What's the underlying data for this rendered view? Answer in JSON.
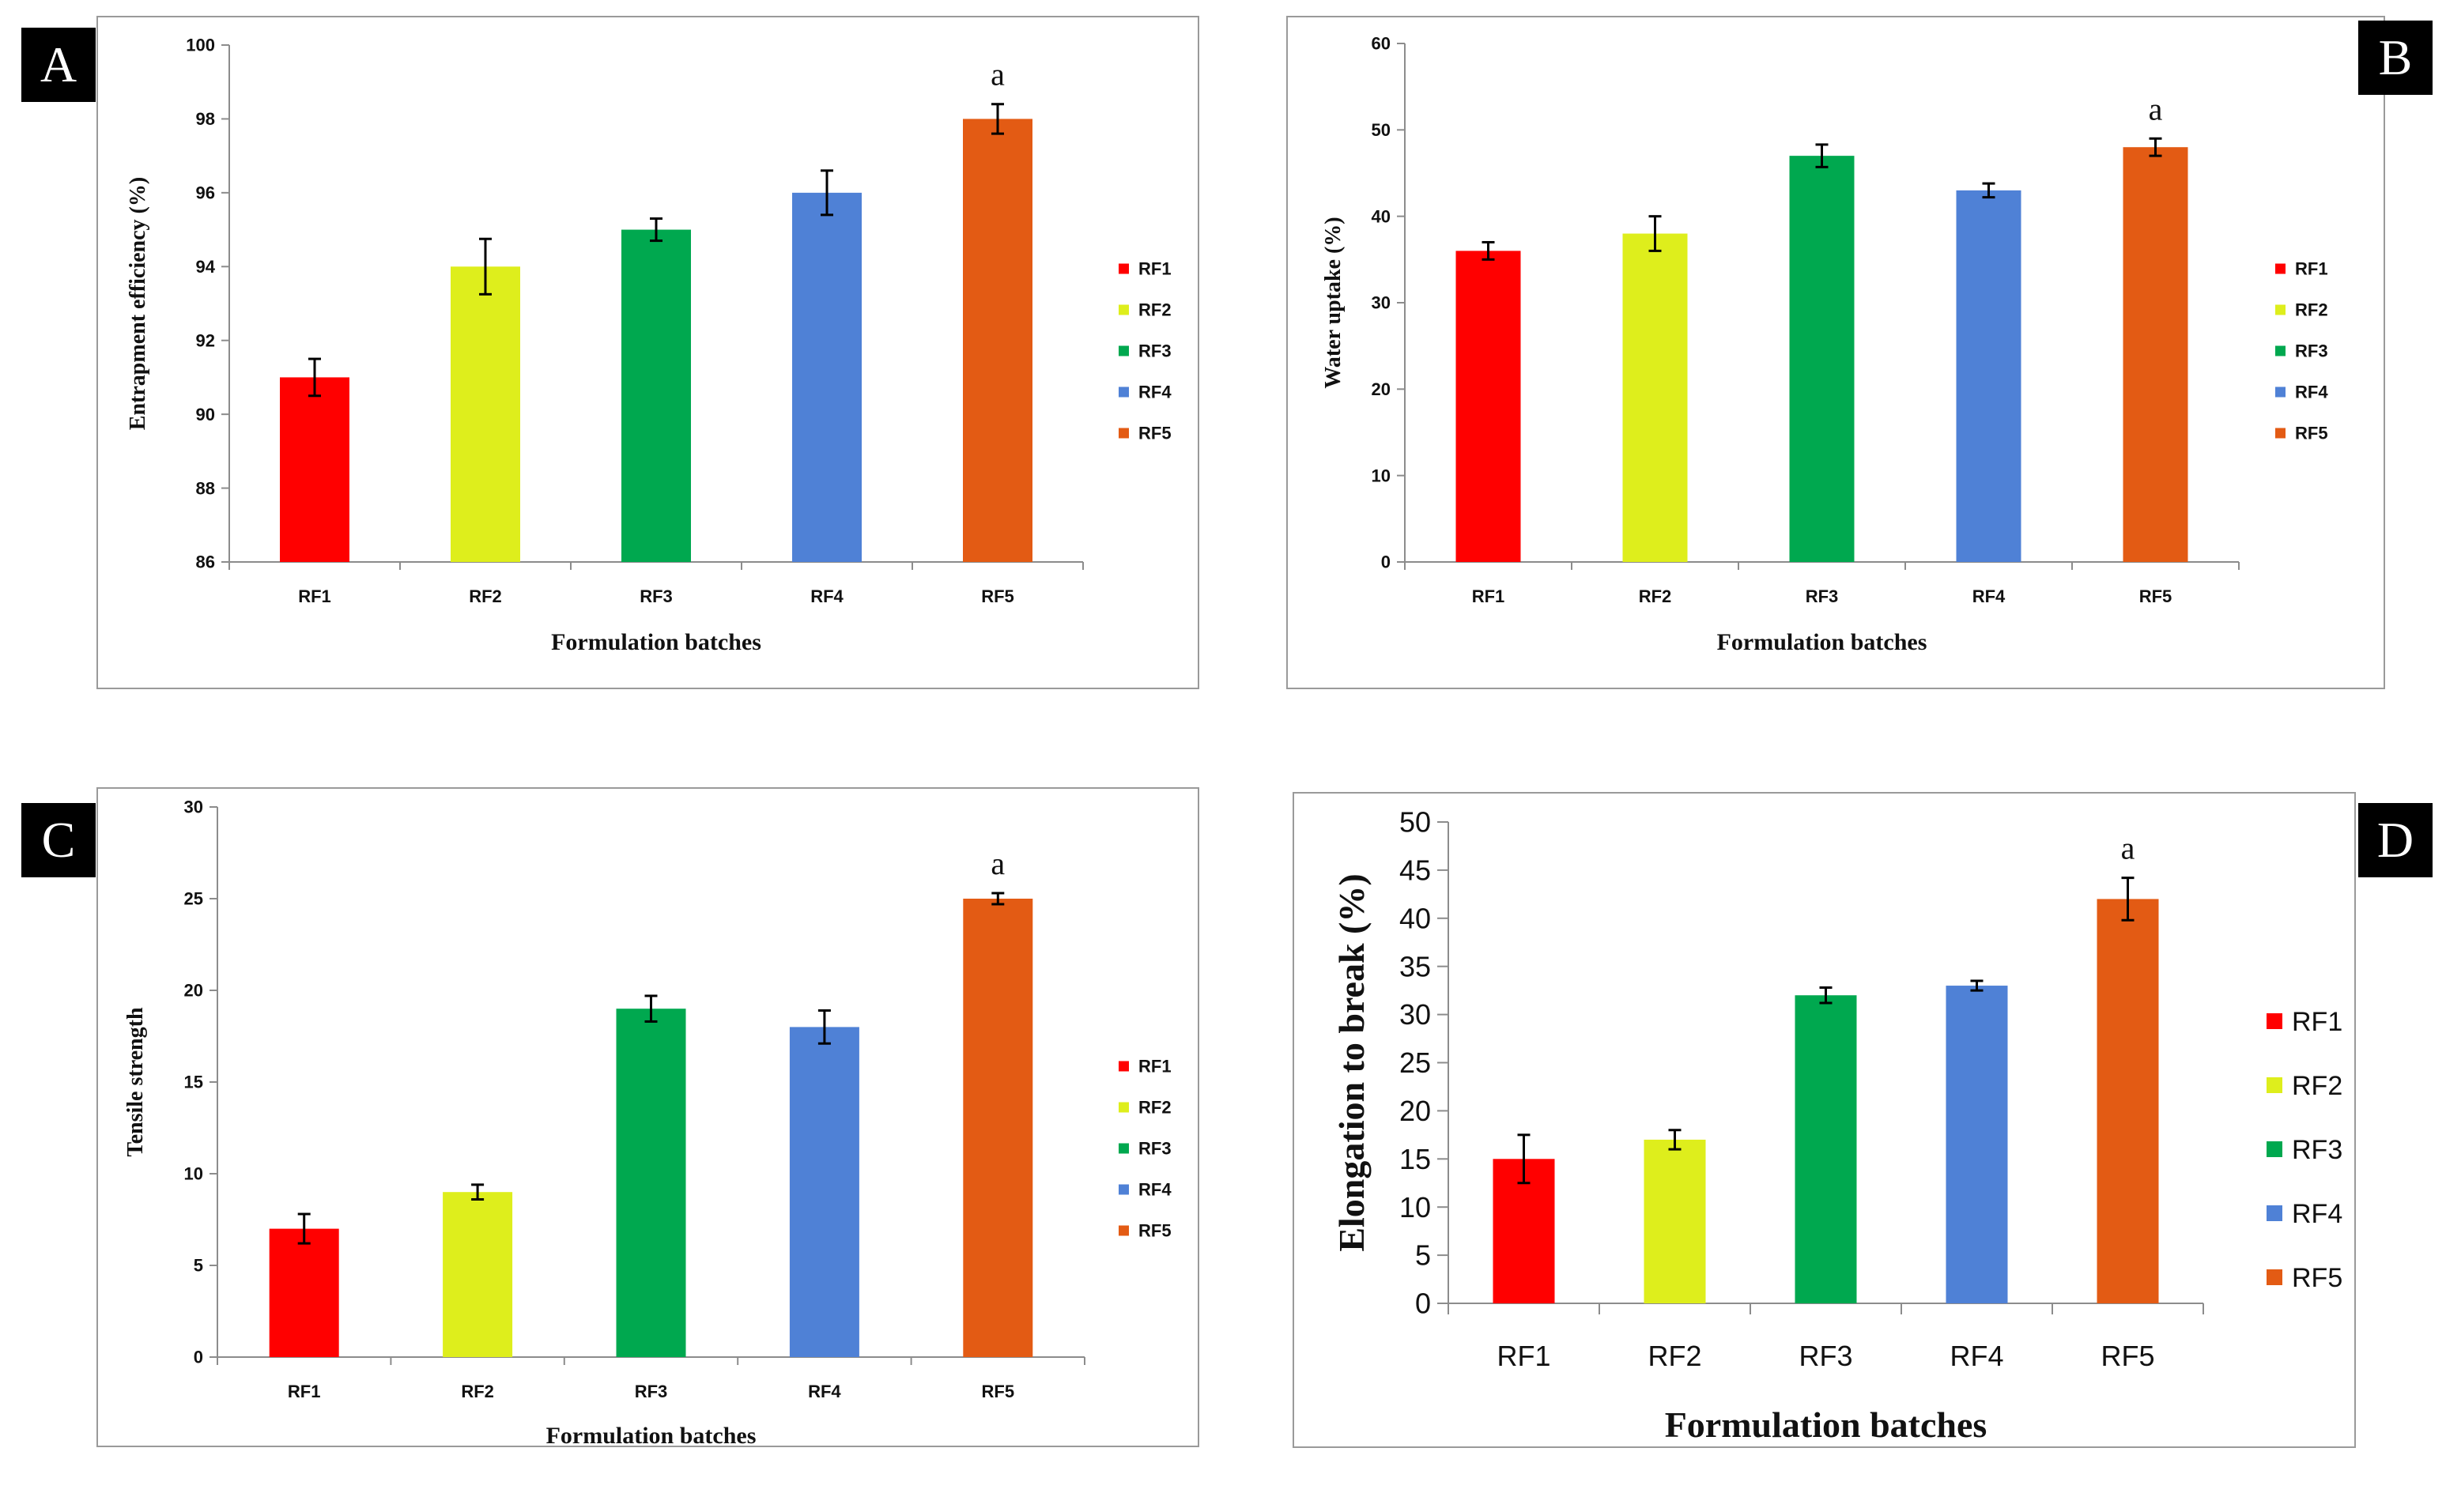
{
  "figure": {
    "panels": [
      {
        "id": "A",
        "chart_index": 0
      },
      {
        "id": "B",
        "chart_index": 1
      },
      {
        "id": "C",
        "chart_index": 2
      },
      {
        "id": "D",
        "chart_index": 3
      }
    ]
  },
  "colors": {
    "RF1": "#ff0000",
    "RF2": "#deee1c",
    "RF3": "#00a84f",
    "RF4": "#4f81d6",
    "RF5": "#e35b14"
  },
  "chart_data": [
    {
      "panel": "A",
      "type": "bar",
      "categories": [
        "RF1",
        "RF2",
        "RF3",
        "RF4",
        "RF5"
      ],
      "values": [
        91,
        94,
        95,
        96,
        98
      ],
      "errors": [
        0.5,
        0.75,
        0.3,
        0.6,
        0.4
      ],
      "annotation": {
        "category": "RF5",
        "text": "a"
      },
      "ylim": [
        86,
        100
      ],
      "yticks": [
        86,
        88,
        90,
        92,
        94,
        96,
        98,
        100
      ],
      "ylabel": "Entrapment efficiency (%)",
      "xlabel": "Formulation batches",
      "legend": [
        "RF1",
        "RF2",
        "RF3",
        "RF4",
        "RF5"
      ],
      "legend_position": "right"
    },
    {
      "panel": "B",
      "type": "bar",
      "categories": [
        "RF1",
        "RF2",
        "RF3",
        "RF4",
        "RF5"
      ],
      "values": [
        36,
        38,
        47,
        43,
        48
      ],
      "errors": [
        1,
        2,
        1.3,
        0.8,
        1
      ],
      "annotation": {
        "category": "RF5",
        "text": "a"
      },
      "ylim": [
        0,
        60
      ],
      "yticks": [
        0,
        10,
        20,
        30,
        40,
        50,
        60
      ],
      "ylabel": "Water uptake (%)",
      "xlabel": "Formulation batches",
      "legend": [
        "RF1",
        "RF2",
        "RF3",
        "RF4",
        "RF5"
      ],
      "legend_position": "right"
    },
    {
      "panel": "C",
      "type": "bar",
      "categories": [
        "RF1",
        "RF2",
        "RF3",
        "RF4",
        "RF5"
      ],
      "values": [
        7,
        9,
        19,
        18,
        25
      ],
      "errors": [
        0.8,
        0.4,
        0.7,
        0.9,
        0.3
      ],
      "annotation": {
        "category": "RF5",
        "text": "a"
      },
      "ylim": [
        0,
        30
      ],
      "yticks": [
        0,
        5,
        10,
        15,
        20,
        25,
        30
      ],
      "ylabel": "Tensile strength",
      "xlabel": "Formulation batches",
      "legend": [
        "RF1",
        "RF2",
        "RF3",
        "RF4",
        "RF5"
      ],
      "legend_position": "right"
    },
    {
      "panel": "D",
      "type": "bar",
      "categories": [
        "RF1",
        "RF2",
        "RF3",
        "RF4",
        "RF5"
      ],
      "values": [
        15,
        17,
        32,
        33,
        42
      ],
      "errors": [
        2.5,
        1,
        0.8,
        0.5,
        2.2
      ],
      "annotation": {
        "category": "RF5",
        "text": "a"
      },
      "ylim": [
        0,
        50
      ],
      "yticks": [
        0,
        5,
        10,
        15,
        20,
        25,
        30,
        35,
        40,
        45,
        50
      ],
      "ylabel": "Elongation to break (%)",
      "xlabel": "Formulation batches",
      "legend": [
        "RF1",
        "RF2",
        "RF3",
        "RF4",
        "RF5"
      ],
      "legend_position": "right"
    }
  ]
}
